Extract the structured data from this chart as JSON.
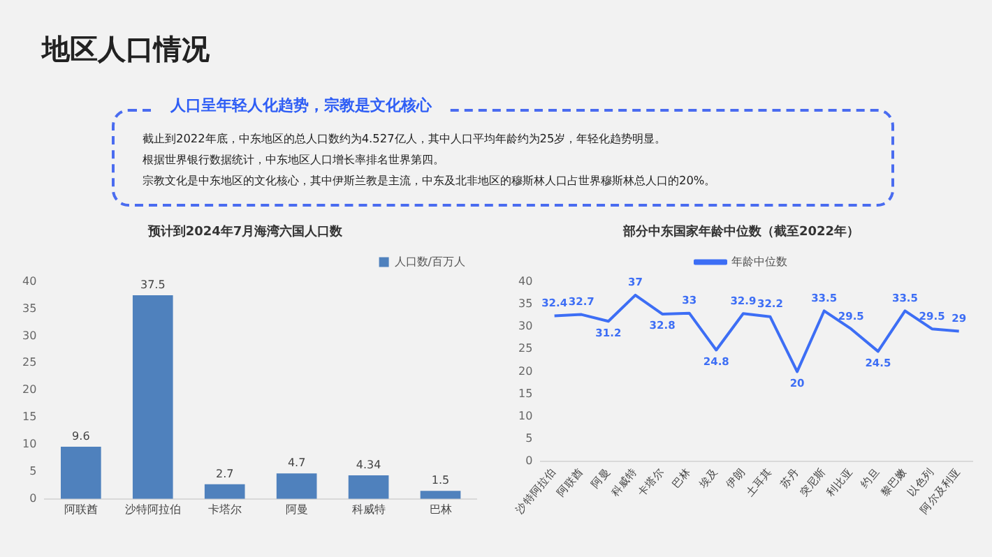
{
  "chart_data": [
    {
      "type": "other",
      "title": "地区人口情况",
      "subtitle": "人口呈年轻人化趋势，宗教是文化核心",
      "annotations": [
        "截止到2022年底，中东地区的总人口数约为4.527亿人，其中人口平均年龄约为25岁，年轻化趋势明显。",
        "根据世界银行数据统计，中东地区人口增长率排名世界第四。",
        "宗教文化是中东地区的文化核心，其中伊斯兰教是主流，中东及北非地区的穆斯林人口占世界穆斯林总人口的20%。"
      ]
    },
    {
      "type": "bar",
      "title": "预计到2024年7月海湾六国人口数",
      "categories": [
        "阿联酋",
        "沙特阿拉伯",
        "卡塔尔",
        "阿曼",
        "科威特",
        "巴林"
      ],
      "series": [
        {
          "name": "人口数/百万人",
          "color": "#4f81bd",
          "values": [
            9.6,
            37.5,
            2.7,
            4.7,
            4.34,
            1.5
          ]
        }
      ],
      "ylim": [
        0,
        40
      ],
      "yticks": [
        0,
        5,
        10,
        15,
        20,
        25,
        30,
        35,
        40
      ],
      "grid": false,
      "legend": "top right",
      "data_labels": true
    },
    {
      "type": "line",
      "title": "部分中东国家年龄中位数（截至2022年）",
      "categories": [
        "沙特阿拉伯",
        "阿联酋",
        "阿曼",
        "科威特",
        "卡塔尔",
        "巴林",
        "埃及",
        "伊朗",
        "土耳其",
        "苏丹",
        "突尼斯",
        "利比亚",
        "约旦",
        "黎巴嫩",
        "以色列",
        "阿尔及利亚"
      ],
      "series": [
        {
          "name": "年龄中位数",
          "color": "#3d6ef5",
          "values": [
            32.4,
            32.7,
            31.2,
            37,
            32.8,
            33,
            24.8,
            32.9,
            32.2,
            20,
            33.5,
            29.5,
            24.5,
            33.5,
            29.5,
            29
          ]
        }
      ],
      "ylim": [
        0,
        40
      ],
      "yticks": [
        0,
        5,
        10,
        15,
        20,
        25,
        30,
        35,
        40
      ],
      "grid": false,
      "legend": "top",
      "marker": "none",
      "line_style": "solid",
      "data_labels": true
    }
  ]
}
